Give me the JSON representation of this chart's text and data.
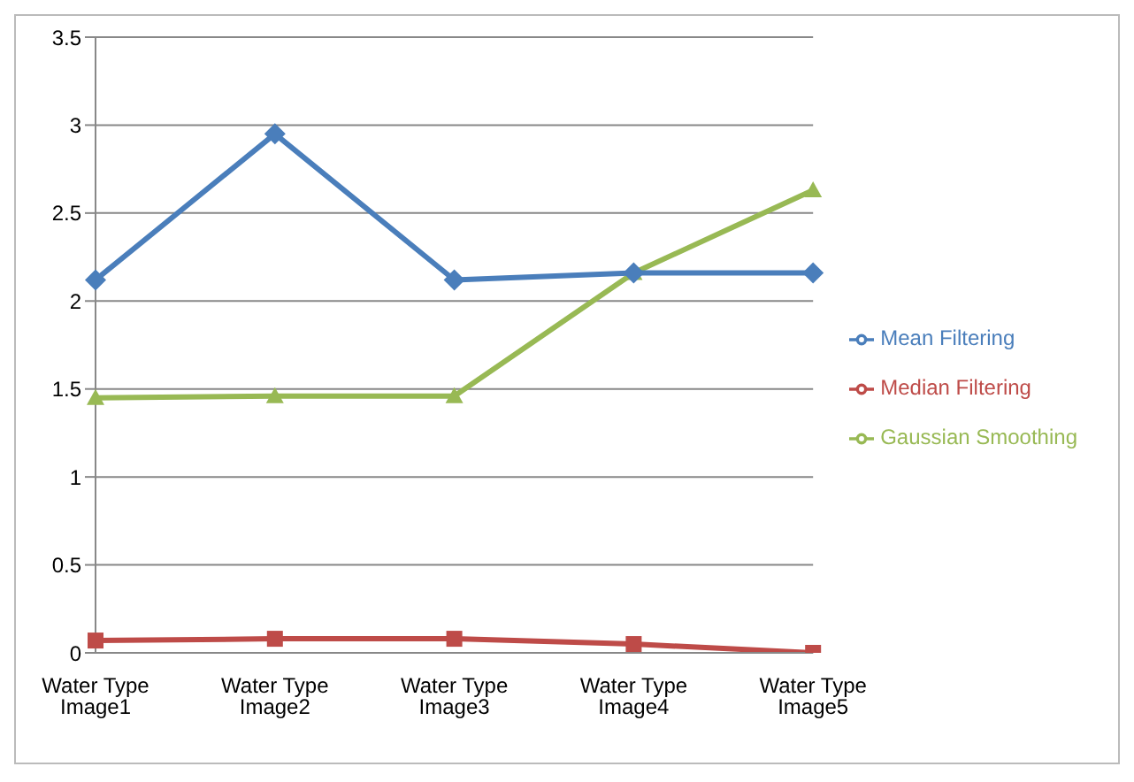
{
  "chart_data": {
    "type": "line",
    "categories": [
      "Water Type Image1",
      "Water Type Image2",
      "Water Type Image3",
      "Water Type Image4",
      "Water Type Image5"
    ],
    "series": [
      {
        "name": "Mean Filtering",
        "color": "#4a7ebb",
        "marker": "diamond",
        "values": [
          2.12,
          2.95,
          2.12,
          2.16,
          2.16
        ]
      },
      {
        "name": "Median Filtering",
        "color": "#be4b48",
        "marker": "square",
        "values": [
          0.07,
          0.08,
          0.08,
          0.05,
          0.0
        ]
      },
      {
        "name": "Gaussian Smoothing",
        "color": "#98b954",
        "marker": "triangle",
        "values": [
          1.45,
          1.46,
          1.46,
          2.16,
          2.63
        ]
      }
    ],
    "ylim": [
      0,
      3.5
    ],
    "yticks": [
      0,
      0.5,
      1,
      1.5,
      2,
      2.5,
      3,
      3.5
    ],
    "grid": "y",
    "legend": "right"
  }
}
